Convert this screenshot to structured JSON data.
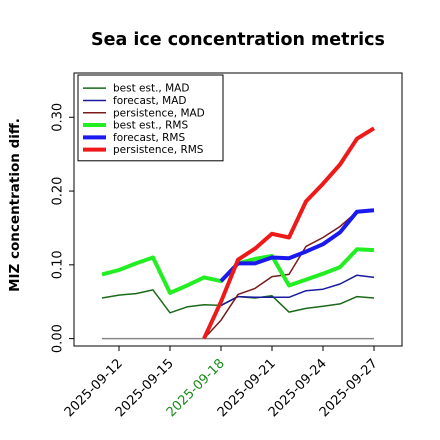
{
  "chart_data": {
    "type": "line",
    "title": "Sea ice concentration metrics",
    "xlabel": "",
    "ylabel": "MIZ concentration diff.",
    "ylim": [
      -0.01,
      0.36
    ],
    "yticks": [
      "0.00",
      "0.10",
      "0.20",
      "0.30"
    ],
    "yticks_values": [
      0.0,
      0.1,
      0.2,
      0.3
    ],
    "x_dates": [
      "2025-09-11",
      "2025-09-12",
      "2025-09-13",
      "2025-09-14",
      "2025-09-15",
      "2025-09-16",
      "2025-09-17",
      "2025-09-18",
      "2025-09-19",
      "2025-09-20",
      "2025-09-21",
      "2025-09-22",
      "2025-09-23",
      "2025-09-24",
      "2025-09-25",
      "2025-09-26",
      "2025-09-27"
    ],
    "xticks": [
      "2025-09-12",
      "2025-09-15",
      "2025-09-18",
      "2025-09-21",
      "2025-09-24",
      "2025-09-27"
    ],
    "highlight_tick": "2025-09-18",
    "highlight_color": "#1a8a1a",
    "zero_line": true,
    "grid": false,
    "legend_position": "upper-left",
    "series": [
      {
        "name": "best est., MAD",
        "color": "#1a6a1a",
        "width": 1.5,
        "x": [
          "2025-09-11",
          "2025-09-12",
          "2025-09-13",
          "2025-09-14",
          "2025-09-15",
          "2025-09-16",
          "2025-09-17",
          "2025-09-18",
          "2025-09-19",
          "2025-09-20",
          "2025-09-21",
          "2025-09-22",
          "2025-09-23",
          "2025-09-24",
          "2025-09-25",
          "2025-09-26",
          "2025-09-27"
        ],
        "y": [
          0.055,
          0.059,
          0.061,
          0.066,
          0.035,
          0.043,
          0.046,
          0.045,
          0.057,
          0.055,
          0.058,
          0.036,
          0.041,
          0.044,
          0.047,
          0.057,
          0.055
        ]
      },
      {
        "name": "forecast,  MAD",
        "color": "#1a1aa0",
        "width": 1.5,
        "x": [
          "2025-09-18",
          "2025-09-19",
          "2025-09-20",
          "2025-09-21",
          "2025-09-22",
          "2025-09-23",
          "2025-09-24",
          "2025-09-25",
          "2025-09-26",
          "2025-09-27"
        ],
        "y": [
          0.045,
          0.057,
          0.056,
          0.056,
          0.056,
          0.065,
          0.067,
          0.074,
          0.086,
          0.083
        ]
      },
      {
        "name": "persistence, MAD",
        "color": "#7a1a1a",
        "width": 1.5,
        "x": [
          "2025-09-17",
          "2025-09-18",
          "2025-09-19",
          "2025-09-20",
          "2025-09-21",
          "2025-09-22",
          "2025-09-23",
          "2025-09-24",
          "2025-09-25",
          "2025-09-26",
          "2025-09-27"
        ],
        "y": [
          0.0,
          0.025,
          0.06,
          0.068,
          0.084,
          0.087,
          0.125,
          0.137,
          0.152,
          0.172,
          0.175
        ]
      },
      {
        "name": "best est., RMS",
        "color": "#22ee22",
        "width": 4,
        "x": [
          "2025-09-11",
          "2025-09-12",
          "2025-09-13",
          "2025-09-14",
          "2025-09-15",
          "2025-09-16",
          "2025-09-17",
          "2025-09-18",
          "2025-09-19",
          "2025-09-20",
          "2025-09-21",
          "2025-09-22",
          "2025-09-23",
          "2025-09-24",
          "2025-09-25",
          "2025-09-26",
          "2025-09-27"
        ],
        "y": [
          0.087,
          0.093,
          0.102,
          0.11,
          0.062,
          0.072,
          0.083,
          0.078,
          0.102,
          0.108,
          0.112,
          0.072,
          0.08,
          0.088,
          0.097,
          0.121,
          0.12
        ]
      },
      {
        "name": "forecast,  RMS",
        "color": "#1a1aee",
        "width": 4,
        "x": [
          "2025-09-18",
          "2025-09-19",
          "2025-09-20",
          "2025-09-21",
          "2025-09-22",
          "2025-09-23",
          "2025-09-24",
          "2025-09-25",
          "2025-09-26",
          "2025-09-27"
        ],
        "y": [
          0.078,
          0.102,
          0.102,
          0.11,
          0.109,
          0.118,
          0.128,
          0.144,
          0.172,
          0.174
        ]
      },
      {
        "name": "persistence, RMS",
        "color": "#ee1a1a",
        "width": 4,
        "x": [
          "2025-09-17",
          "2025-09-18",
          "2025-09-19",
          "2025-09-20",
          "2025-09-21",
          "2025-09-22",
          "2025-09-23",
          "2025-09-24",
          "2025-09-25",
          "2025-09-26",
          "2025-09-27"
        ],
        "y": [
          0.0,
          0.05,
          0.107,
          0.122,
          0.142,
          0.137,
          0.186,
          0.21,
          0.236,
          0.271,
          0.285
        ]
      }
    ]
  }
}
